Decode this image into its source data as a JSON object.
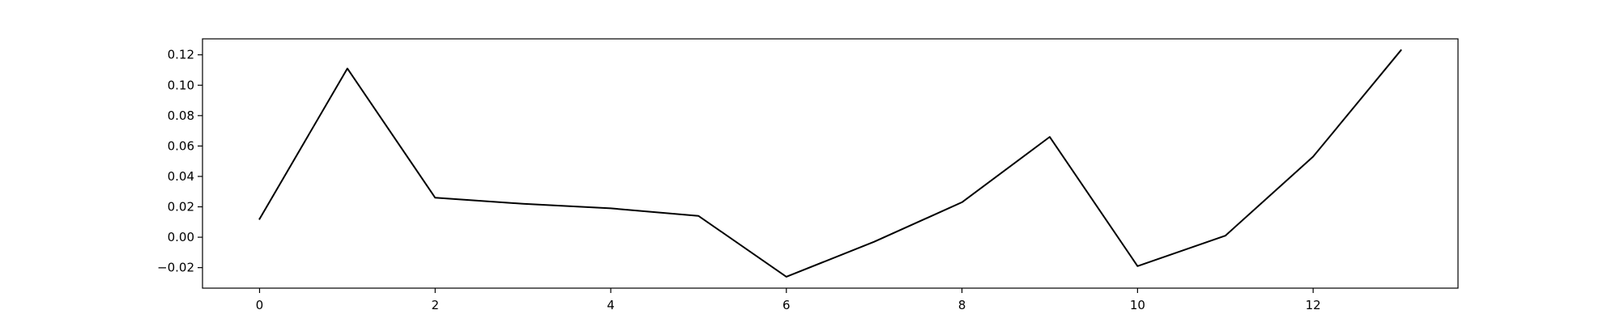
{
  "chart_data": {
    "type": "line",
    "title": "",
    "xlabel": "",
    "ylabel": "",
    "x": [
      0,
      1,
      2,
      3,
      4,
      5,
      6,
      7,
      8,
      9,
      10,
      11,
      12,
      13
    ],
    "series": [
      {
        "values": [
          0.012,
          0.111,
          0.026,
          0.022,
          0.019,
          0.014,
          -0.026,
          -0.003,
          0.023,
          0.066,
          -0.019,
          0.001,
          0.053,
          0.123
        ]
      }
    ],
    "xlim": [
      -0.65,
      13.65
    ],
    "ylim": [
      -0.0335,
      0.1305
    ],
    "xticks": [
      0,
      2,
      4,
      6,
      8,
      10,
      12
    ],
    "xtick_labels": [
      "0",
      "2",
      "4",
      "6",
      "8",
      "10",
      "12"
    ],
    "yticks": [
      -0.02,
      0.0,
      0.02,
      0.04,
      0.06,
      0.08,
      0.1,
      0.12
    ],
    "ytick_labels": [
      "−0.02",
      "0.00",
      "0.02",
      "0.04",
      "0.06",
      "0.08",
      "0.10",
      "0.12"
    ],
    "grid": false,
    "legend": false,
    "line_color": "#000000",
    "frame_color": "#000000"
  }
}
